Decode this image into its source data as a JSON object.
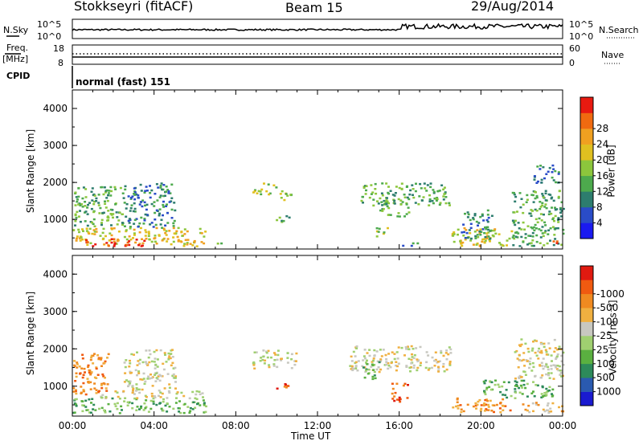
{
  "header": {
    "station": "Stokkseyri (fitACF)",
    "beam": "Beam 15",
    "date": "29/Aug/2014"
  },
  "top_panels": {
    "nsky_label": "N.Sky",
    "nsky_ticks": [
      "10^5",
      "10^0"
    ],
    "nsearch_label": "N.Search",
    "freq_label": "Freq.",
    "freq_unit": "[MHz]",
    "freq_ticks": [
      "18",
      "8"
    ],
    "nave_label": "Nave",
    "nave_ticks": [
      "60",
      "0"
    ],
    "cpid_label": "CPID",
    "cpid_value": "normal (fast) 151"
  },
  "colors": {
    "axis": "#000000"
  },
  "chart_data": [
    {
      "type": "heatmap",
      "title": "Power",
      "ylabel": "Slant Range [km]",
      "ylim": [
        200,
        4500
      ],
      "yticks": [
        "1000",
        "2000",
        "3000",
        "4000"
      ],
      "xlim": [
        0,
        24
      ],
      "colorbar": {
        "label": "Power [dB]",
        "ticks": [
          "4",
          "8",
          "12",
          "16",
          "20",
          "24",
          "28"
        ],
        "colors": [
          "#1a1af0",
          "#2a4cc8",
          "#2d7d6e",
          "#4daa4d",
          "#8cc63c",
          "#e0c020",
          "#f0a020",
          "#f06a10",
          "#e81a10"
        ]
      },
      "blobs": [
        {
          "t": [
            0.0,
            6.5
          ],
          "r": [
            300,
            800
          ],
          "level": 5
        },
        {
          "t": [
            0.0,
            2.5
          ],
          "r": [
            800,
            1900
          ],
          "level": 3
        },
        {
          "t": [
            0.5,
            3.5
          ],
          "r": [
            300,
            500
          ],
          "level": 8
        },
        {
          "t": [
            2.5,
            5.0
          ],
          "r": [
            800,
            2000
          ],
          "level": 2
        },
        {
          "t": [
            7.0,
            7.5
          ],
          "r": [
            300,
            400
          ],
          "level": 4
        },
        {
          "t": [
            8.8,
            10.0
          ],
          "r": [
            1700,
            2000
          ],
          "level": 4
        },
        {
          "t": [
            10.0,
            10.8
          ],
          "r": [
            1500,
            1800
          ],
          "level": 4
        },
        {
          "t": [
            9.8,
            10.6
          ],
          "r": [
            950,
            1150
          ],
          "level": 3
        },
        {
          "t": [
            14.0,
            18.5
          ],
          "r": [
            1400,
            2000
          ],
          "level": 3
        },
        {
          "t": [
            15.0,
            16.5
          ],
          "r": [
            1100,
            1500
          ],
          "level": 3
        },
        {
          "t": [
            14.8,
            15.4
          ],
          "r": [
            500,
            800
          ],
          "level": 4
        },
        {
          "t": [
            16.0,
            17.0
          ],
          "r": [
            300,
            400
          ],
          "level": 2
        },
        {
          "t": [
            18.5,
            21.5
          ],
          "r": [
            300,
            800
          ],
          "level": 5
        },
        {
          "t": [
            19.0,
            20.5
          ],
          "r": [
            500,
            1300
          ],
          "level": 2
        },
        {
          "t": [
            21.5,
            24.0
          ],
          "r": [
            300,
            1800
          ],
          "level": 3
        },
        {
          "t": [
            22.5,
            23.8
          ],
          "r": [
            2000,
            2500
          ],
          "level": 2
        },
        {
          "t": [
            23.5,
            24.0
          ],
          "r": [
            300,
            450
          ],
          "level": 8
        }
      ]
    },
    {
      "type": "heatmap",
      "title": "Velocity",
      "ylabel": "Slant Range [km]",
      "ylim": [
        200,
        4500
      ],
      "yticks": [
        "1000",
        "2000",
        "3000",
        "4000"
      ],
      "xlim": [
        0,
        24
      ],
      "xticks": [
        "00:00",
        "04:00",
        "08:00",
        "12:00",
        "16:00",
        "20:00",
        "00:00"
      ],
      "xlabel": "Time UT",
      "colorbar": {
        "label": "Velocity [m s⁻¹]",
        "ticks": [
          "1000",
          "500",
          "100",
          "25",
          "-25",
          "-100",
          "-500",
          "-1000"
        ],
        "colors": [
          "#1a1ad0",
          "#2a5ab0",
          "#2d8a5a",
          "#5ab040",
          "#a0d070",
          "#c8c8c0",
          "#f0b040",
          "#f08a20",
          "#f05a10",
          "#e01a10"
        ]
      },
      "blobs": [
        {
          "t": [
            0.0,
            1.8
          ],
          "r": [
            800,
            1900
          ],
          "level": 7
        },
        {
          "t": [
            0.0,
            6.5
          ],
          "r": [
            300,
            700
          ],
          "level": 3
        },
        {
          "t": [
            1.0,
            6.5
          ],
          "r": [
            700,
            900
          ],
          "level": 5
        },
        {
          "t": [
            2.5,
            5.0
          ],
          "r": [
            900,
            2000
          ],
          "level": 5
        },
        {
          "t": [
            8.8,
            11.0
          ],
          "r": [
            1500,
            2000
          ],
          "level": 5
        },
        {
          "t": [
            9.8,
            10.6
          ],
          "r": [
            950,
            1150
          ],
          "level": 8
        },
        {
          "t": [
            13.5,
            18.5
          ],
          "r": [
            1400,
            2100
          ],
          "level": 5
        },
        {
          "t": [
            15.6,
            16.4
          ],
          "r": [
            600,
            1100
          ],
          "level": 8
        },
        {
          "t": [
            14.2,
            15.0
          ],
          "r": [
            1200,
            1700
          ],
          "level": 3
        },
        {
          "t": [
            18.5,
            21.5
          ],
          "r": [
            300,
            700
          ],
          "level": 7
        },
        {
          "t": [
            20.0,
            23.5
          ],
          "r": [
            700,
            1200
          ],
          "level": 3
        },
        {
          "t": [
            21.5,
            24.0
          ],
          "r": [
            1200,
            2300
          ],
          "level": 5
        },
        {
          "t": [
            22.0,
            24.0
          ],
          "r": [
            300,
            600
          ],
          "level": 6
        }
      ]
    }
  ]
}
